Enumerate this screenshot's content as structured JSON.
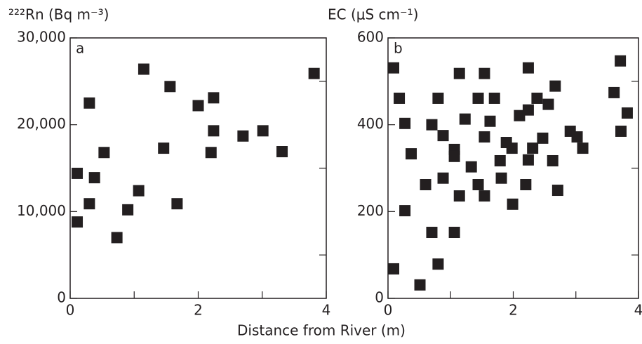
{
  "chart_data": [
    {
      "type": "scatter",
      "title": "²²²Rn (Bq m⁻³)",
      "panel_label": "a",
      "color": "#231f20",
      "xlim": [
        0,
        4
      ],
      "xticks": [
        0,
        2,
        4
      ],
      "minor_xticks": [
        1,
        3
      ],
      "ylim": [
        0,
        30000
      ],
      "yticks": [
        0,
        {
          "value": 10000,
          "label": "10,000"
        },
        {
          "value": 20000,
          "label": "20,000"
        },
        {
          "value": 30000,
          "label": "30,000"
        }
      ],
      "minor_yticks": [
        5000,
        15000,
        25000
      ],
      "x": [
        0.11,
        0.11,
        0.3,
        0.3,
        0.38,
        0.53,
        0.73,
        0.9,
        1.07,
        1.15,
        1.46,
        1.56,
        1.67,
        2.0,
        2.2,
        2.24,
        2.24,
        2.7,
        3.01,
        3.31,
        3.81
      ],
      "values": [
        14400,
        8800,
        22500,
        10900,
        13900,
        16800,
        7000,
        10200,
        12400,
        26400,
        17300,
        24400,
        10900,
        22200,
        16800,
        23100,
        19300,
        18700,
        19300,
        16900,
        25900
      ]
    },
    {
      "type": "scatter",
      "title": "EC (μS cm⁻¹)",
      "panel_label": "b",
      "color": "#231f20",
      "xlim": [
        0,
        4
      ],
      "xticks": [
        0,
        2,
        4
      ],
      "minor_xticks": [
        1,
        3
      ],
      "ylim": [
        0,
        600
      ],
      "yticks": [
        0,
        200,
        400,
        600
      ],
      "minor_yticks": [
        100,
        300,
        500
      ],
      "x": [
        0.09,
        0.18,
        0.27,
        0.37,
        0.27,
        0.09,
        0.51,
        0.6,
        0.7,
        0.7,
        0.8,
        0.8,
        0.88,
        0.88,
        1.06,
        1.06,
        1.06,
        1.14,
        1.14,
        1.23,
        1.33,
        1.44,
        1.44,
        1.54,
        1.54,
        1.54,
        1.63,
        1.7,
        1.79,
        1.81,
        1.89,
        1.98,
        1.99,
        2.1,
        2.2,
        2.24,
        2.24,
        2.24,
        2.31,
        2.38,
        2.47,
        2.56,
        2.63,
        2.67,
        2.71,
        2.91,
        3.02,
        3.11,
        3.61,
        3.71,
        3.72,
        3.82
      ],
      "values": [
        531,
        461,
        403,
        333,
        202,
        68,
        31,
        262,
        400,
        152,
        79,
        461,
        375,
        277,
        343,
        152,
        327,
        236,
        518,
        413,
        303,
        461,
        262,
        372,
        236,
        518,
        408,
        461,
        317,
        277,
        359,
        346,
        217,
        421,
        262,
        319,
        434,
        531,
        346,
        461,
        369,
        447,
        317,
        489,
        249,
        385,
        372,
        346,
        474,
        547,
        385,
        427
      ]
    }
  ],
  "xlabel": "Distance from River (m)"
}
